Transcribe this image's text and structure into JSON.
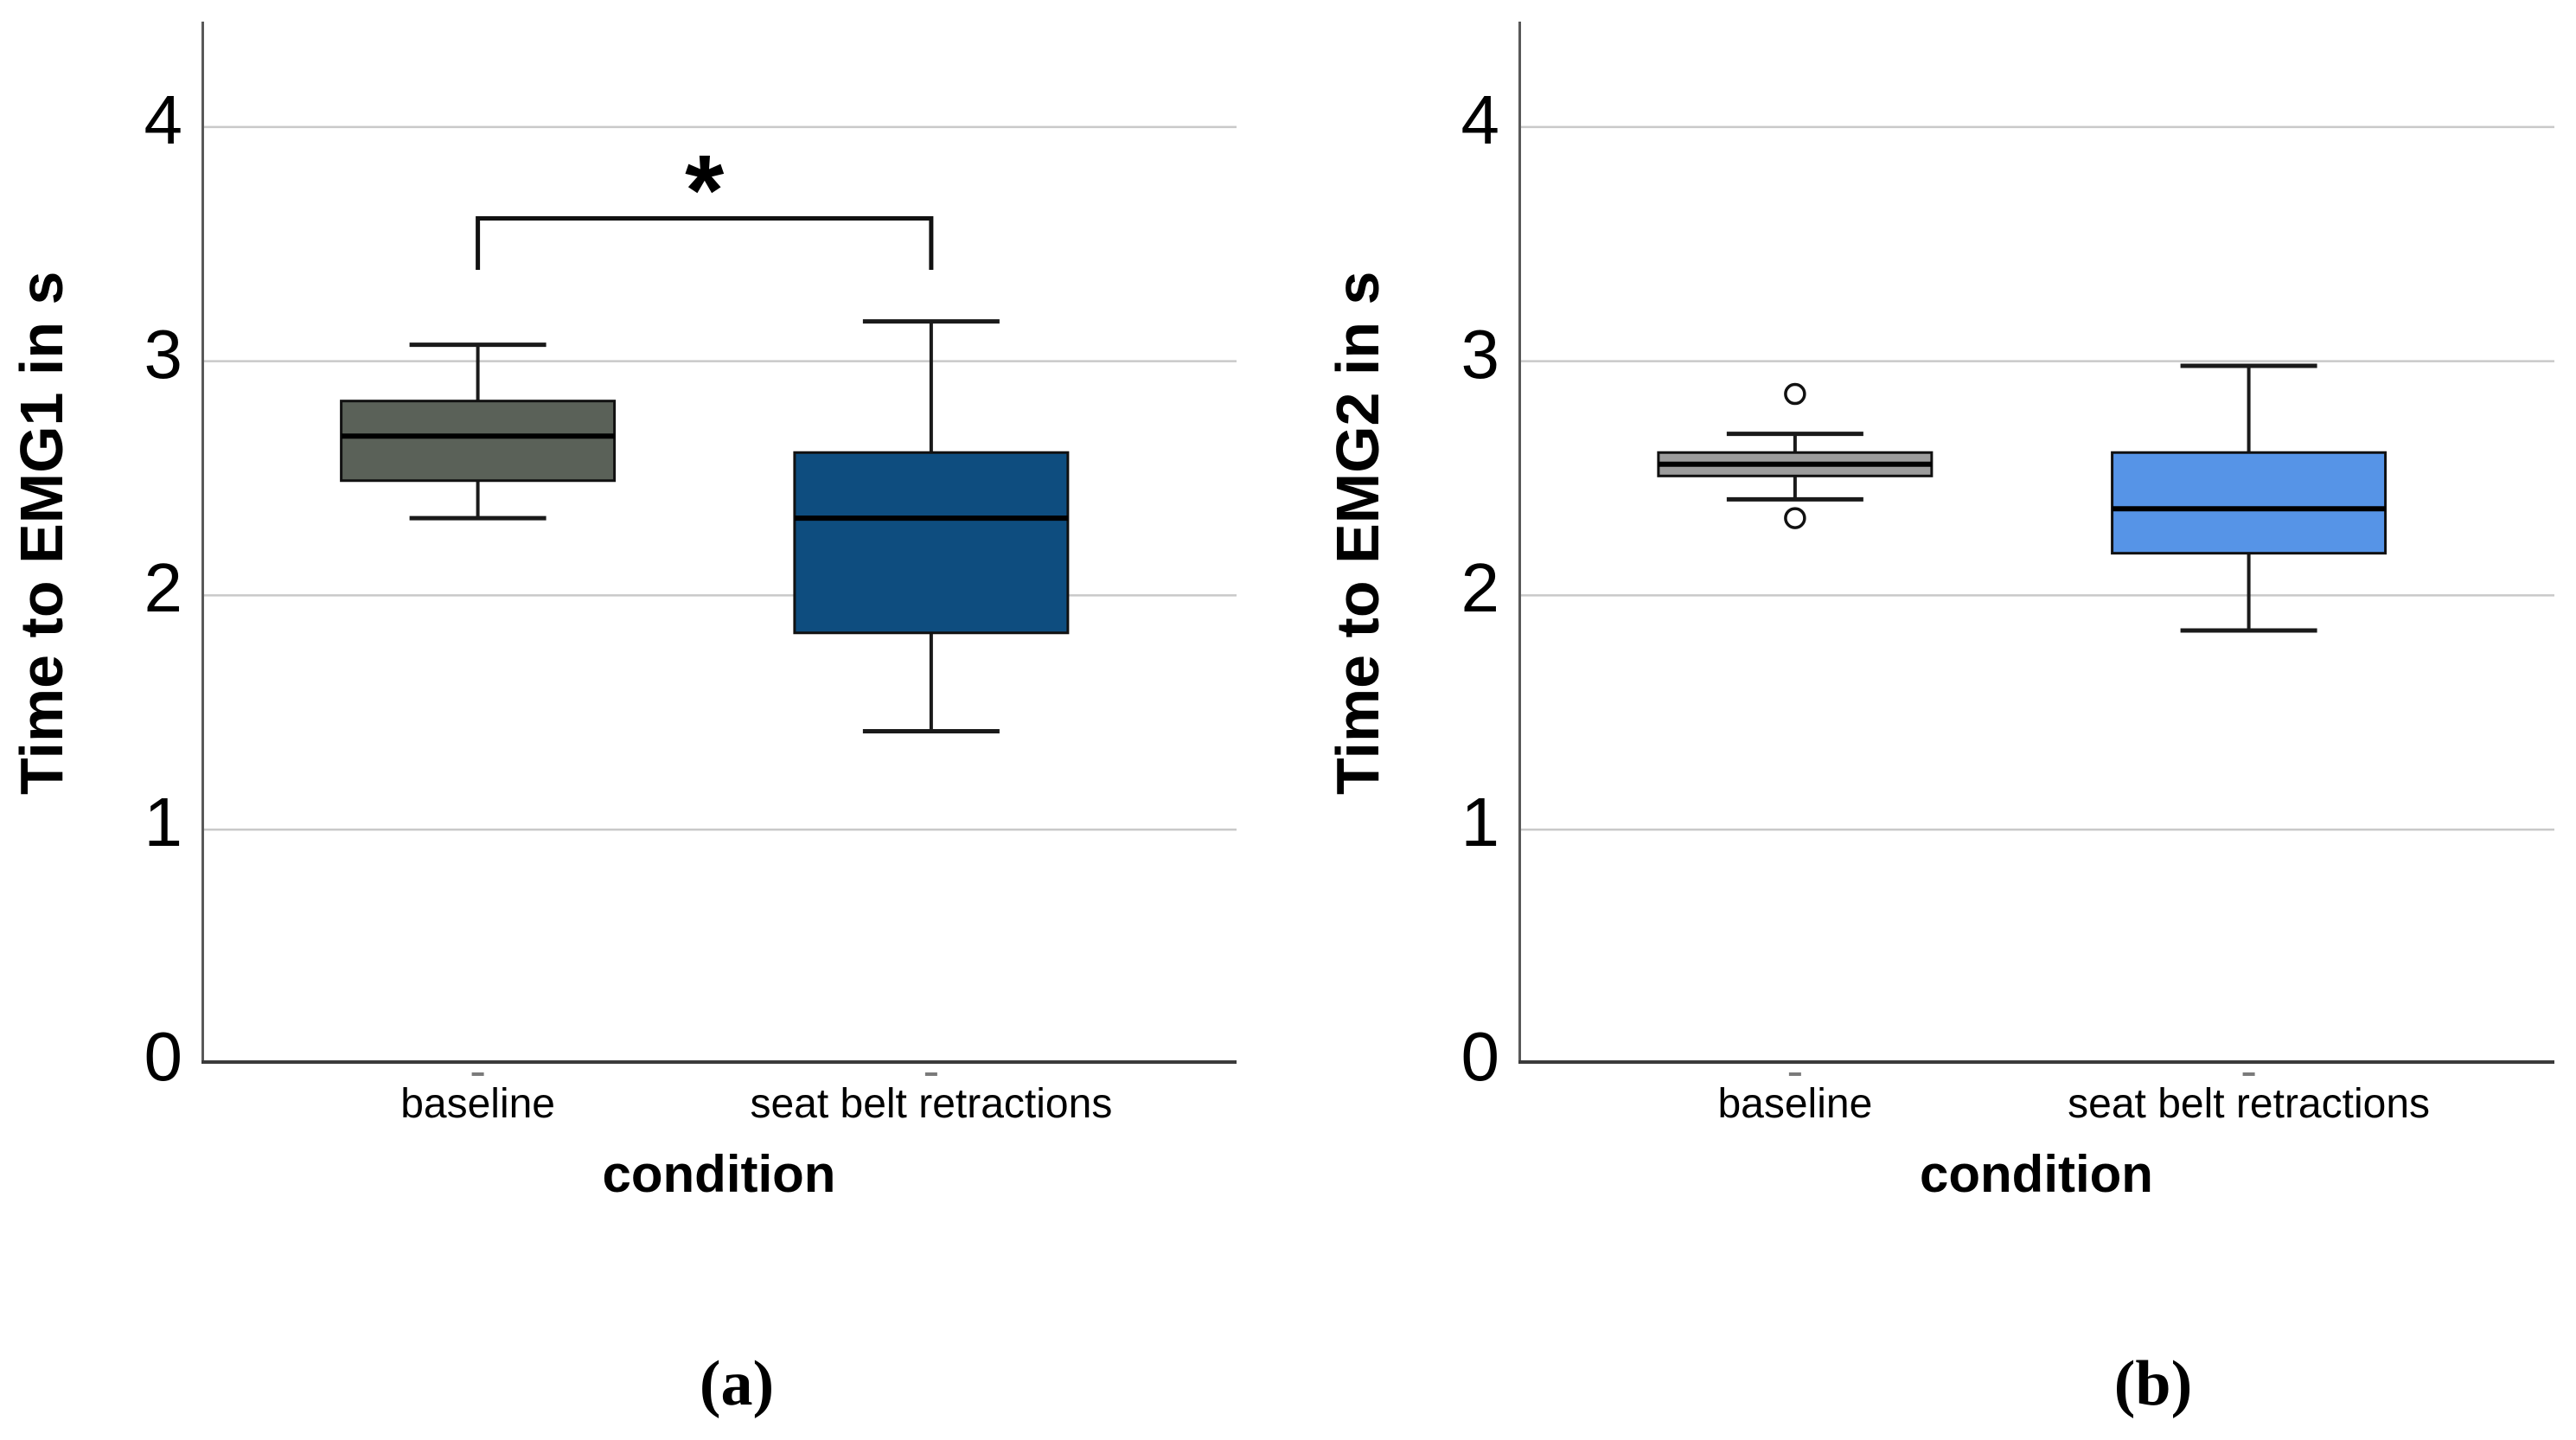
{
  "styles": {
    "grid_color": "#c9c9c9",
    "axis_color": "#3b3b3b",
    "spine_color": "#595959",
    "box_stroke": "#111111",
    "whisker_color": "#1a1a1a",
    "median_color": "#000000",
    "tickdash_color": "#7a7a7a",
    "outlier_fill": "#ffffff",
    "text_color": "#000000"
  },
  "chart_data": [
    {
      "type": "boxplot",
      "panel_label": "(a)",
      "ylabel": "Time to EMG1 in s",
      "xlabel": "condition",
      "ylim": [
        0,
        4.45
      ],
      "yticks": [
        0,
        1,
        2,
        3,
        4
      ],
      "grid": true,
      "categories": [
        "baseline",
        "seat belt retractions"
      ],
      "series": [
        {
          "category": "baseline",
          "fill": "#5a6158",
          "whisker_low": 2.33,
          "q1": 2.49,
          "median": 2.68,
          "q3": 2.83,
          "whisker_high": 3.07,
          "outliers": []
        },
        {
          "category": "seat belt retractions",
          "fill": "#0e4d7f",
          "whisker_low": 1.42,
          "q1": 1.84,
          "median": 2.33,
          "q3": 2.61,
          "whisker_high": 3.17,
          "outliers": []
        }
      ],
      "significance": {
        "label": "*",
        "between": [
          "baseline",
          "seat belt retractions"
        ],
        "bar_y": 3.61,
        "tip_y": 3.39,
        "label_y": 3.73
      }
    },
    {
      "type": "boxplot",
      "panel_label": "(b)",
      "ylabel": "Time to EMG2 in s",
      "xlabel": "condition",
      "ylim": [
        0,
        4.45
      ],
      "yticks": [
        0,
        1,
        2,
        3,
        4
      ],
      "grid": true,
      "categories": [
        "baseline",
        "seat belt retractions"
      ],
      "series": [
        {
          "category": "baseline",
          "fill": "#9c9c9c",
          "whisker_low": 2.41,
          "q1": 2.51,
          "median": 2.56,
          "q3": 2.61,
          "whisker_high": 2.69,
          "outliers": [
            2.86,
            2.33
          ]
        },
        {
          "category": "seat belt retractions",
          "fill": "#5694e7",
          "whisker_low": 1.85,
          "q1": 2.18,
          "median": 2.37,
          "q3": 2.61,
          "whisker_high": 2.98,
          "outliers": []
        }
      ],
      "significance": null
    }
  ]
}
